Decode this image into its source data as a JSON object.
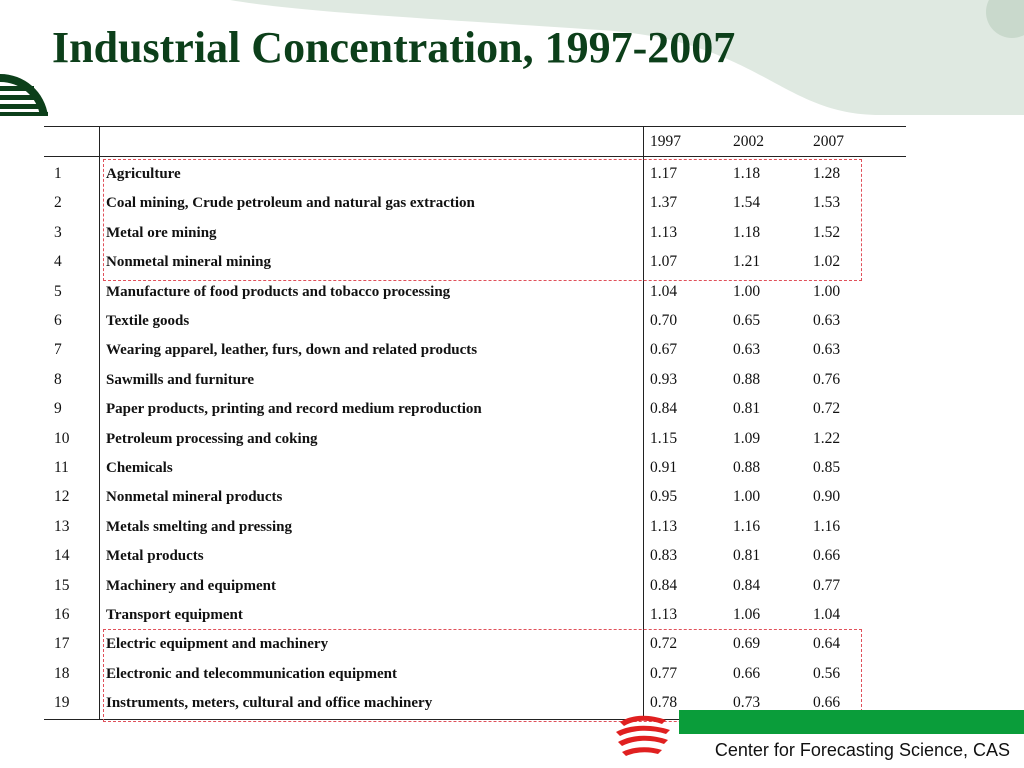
{
  "title": "Industrial Concentration, 1997-2007",
  "footer": "Center for Forecasting Science, CAS",
  "colors": {
    "title": "#0c3f1a",
    "accent_green": "#0a9d3a",
    "highlight_dash": "#e0505a",
    "deco_green": "#dfe9e1"
  },
  "table": {
    "headers": [
      "",
      "",
      "1997",
      "2002",
      "2007"
    ],
    "rows": [
      {
        "no": "1",
        "name": "Agriculture",
        "v1997": "1.17",
        "v2002": "1.18",
        "v2007": "1.28"
      },
      {
        "no": "2",
        "name": "Coal mining, Crude petroleum and natural gas extraction",
        "v1997": "1.37",
        "v2002": "1.54",
        "v2007": "1.53"
      },
      {
        "no": "3",
        "name": "Metal ore mining",
        "v1997": "1.13",
        "v2002": "1.18",
        "v2007": "1.52"
      },
      {
        "no": "4",
        "name": "Nonmetal mineral mining",
        "v1997": "1.07",
        "v2002": "1.21",
        "v2007": "1.02"
      },
      {
        "no": "5",
        "name": "Manufacture of food products and tobacco processing",
        "v1997": "1.04",
        "v2002": "1.00",
        "v2007": "1.00"
      },
      {
        "no": "6",
        "name": "Textile goods",
        "v1997": "0.70",
        "v2002": "0.65",
        "v2007": "0.63"
      },
      {
        "no": "7",
        "name": "Wearing apparel, leather, furs, down and related products",
        "v1997": "0.67",
        "v2002": "0.63",
        "v2007": "0.63"
      },
      {
        "no": "8",
        "name": "Sawmills and furniture",
        "v1997": "0.93",
        "v2002": "0.88",
        "v2007": "0.76"
      },
      {
        "no": "9",
        "name": "Paper products, printing and record medium reproduction",
        "v1997": "0.84",
        "v2002": "0.81",
        "v2007": "0.72"
      },
      {
        "no": "10",
        "name": "Petroleum processing and coking",
        "v1997": "1.15",
        "v2002": "1.09",
        "v2007": "1.22"
      },
      {
        "no": "11",
        "name": "Chemicals",
        "v1997": "0.91",
        "v2002": "0.88",
        "v2007": "0.85"
      },
      {
        "no": "12",
        "name": "Nonmetal mineral products",
        "v1997": "0.95",
        "v2002": "1.00",
        "v2007": "0.90"
      },
      {
        "no": "13",
        "name": "Metals smelting and pressing",
        "v1997": "1.13",
        "v2002": "1.16",
        "v2007": "1.16"
      },
      {
        "no": "14",
        "name": "Metal products",
        "v1997": "0.83",
        "v2002": "0.81",
        "v2007": "0.66"
      },
      {
        "no": "15",
        "name": "Machinery and equipment",
        "v1997": "0.84",
        "v2002": "0.84",
        "v2007": "0.77"
      },
      {
        "no": "16",
        "name": "Transport equipment",
        "v1997": "1.13",
        "v2002": "1.06",
        "v2007": "1.04"
      },
      {
        "no": "17",
        "name": "Electric equipment and machinery",
        "v1997": "0.72",
        "v2002": "0.69",
        "v2007": "0.64"
      },
      {
        "no": "18",
        "name": "Electronic and telecommunication equipment",
        "v1997": "0.77",
        "v2002": "0.66",
        "v2007": "0.56"
      },
      {
        "no": "19",
        "name": "Instruments, meters, cultural and office machinery",
        "v1997": "0.78",
        "v2002": "0.73",
        "v2007": "0.66"
      }
    ]
  }
}
